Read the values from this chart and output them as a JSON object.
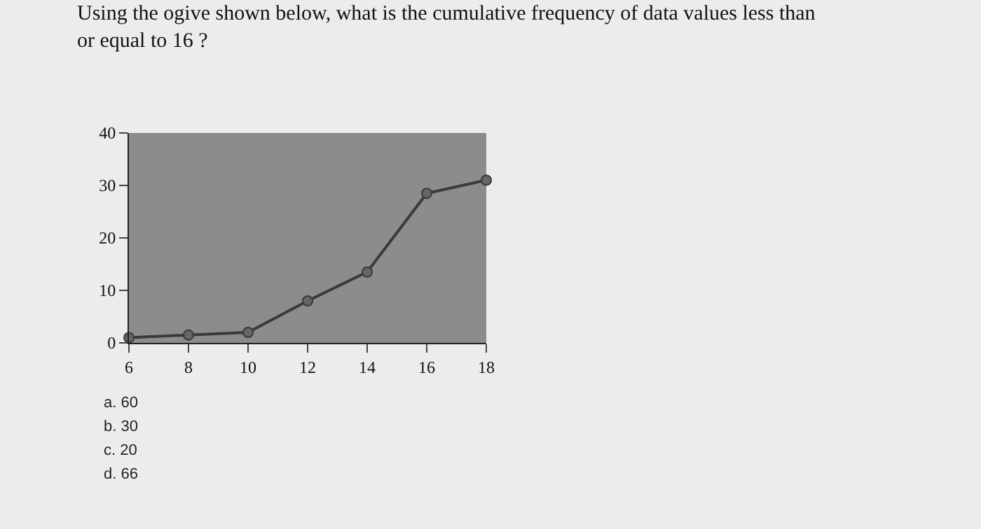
{
  "chart_data": {
    "type": "line",
    "title": "Using the ogive shown below, what is the cumulative frequency of data values less than or equal to 16 ?",
    "x": [
      6,
      8,
      10,
      12,
      14,
      16,
      18
    ],
    "series": [
      {
        "color": "#3a3a3a",
        "values": [
          1,
          1.5,
          2,
          8,
          13.5,
          28.5,
          31
        ]
      }
    ],
    "xlim": [
      6,
      18
    ],
    "xticks": [
      6,
      8,
      10,
      12,
      14,
      16,
      18
    ],
    "ylim": [
      0,
      40
    ],
    "yticks": [
      0,
      10,
      20,
      30,
      40
    ],
    "marker": "circle",
    "line_style": "solid",
    "grid": false,
    "legend": false,
    "annotations": [
      "a. 60",
      "b. 30",
      "c. 20",
      "d. 66"
    ]
  }
}
